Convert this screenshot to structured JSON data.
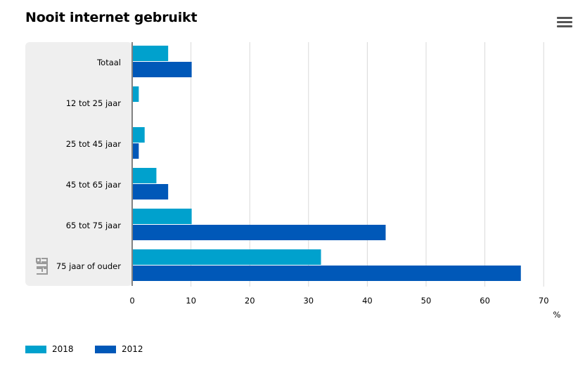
{
  "title": "Nooit internet gebruikt",
  "menu_icon": "hamburger-menu-icon",
  "logo_icon": "cbs-logo-icon",
  "colors": {
    "series_2018": "#00a1cd",
    "series_2012": "#0058b8",
    "panel": "#efefef",
    "grid": "#d9d9d9"
  },
  "chart_data": {
    "type": "bar",
    "orientation": "horizontal",
    "title": "Nooit internet gebruikt",
    "categories": [
      "Totaal",
      "12 tot 25 jaar",
      "25 tot 45 jaar",
      "45 tot 65 jaar",
      "65 tot 75 jaar",
      "75 jaar of ouder"
    ],
    "series": [
      {
        "name": "2018",
        "values": [
          6,
          1,
          2,
          4,
          10,
          32
        ]
      },
      {
        "name": "2012",
        "values": [
          10,
          0,
          1,
          6,
          43,
          66
        ]
      }
    ],
    "xlim": [
      0,
      70
    ],
    "ticks": [
      "0",
      "10",
      "20",
      "30",
      "40",
      "50",
      "60",
      "70"
    ],
    "unit": "%",
    "grid": true,
    "legend": "bottom-left"
  }
}
